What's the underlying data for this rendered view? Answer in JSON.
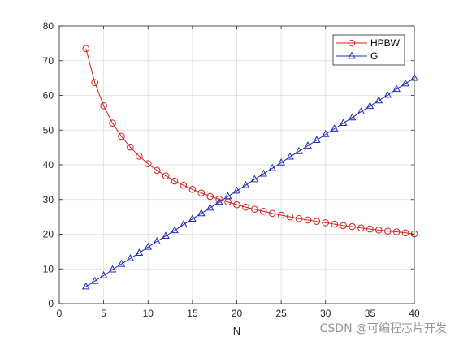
{
  "chart_data": {
    "type": "line",
    "xlabel": "N",
    "ylabel": "",
    "title": "",
    "xlim": [
      0,
      40
    ],
    "ylim": [
      0,
      80
    ],
    "xticks": [
      0,
      5,
      10,
      15,
      20,
      25,
      30,
      35,
      40
    ],
    "yticks": [
      0,
      10,
      20,
      30,
      40,
      50,
      60,
      70,
      80
    ],
    "grid": true,
    "legend_position": "top-right",
    "x": [
      3,
      4,
      5,
      6,
      7,
      8,
      9,
      10,
      11,
      12,
      13,
      14,
      15,
      16,
      17,
      18,
      19,
      20,
      21,
      22,
      23,
      24,
      25,
      26,
      27,
      28,
      29,
      30,
      31,
      32,
      33,
      34,
      35,
      36,
      37,
      38,
      39,
      40
    ],
    "series": [
      {
        "name": "HPBW",
        "color": "#d62020",
        "marker": "circle",
        "values": [
          73.5,
          63.7,
          57.0,
          52.0,
          48.2,
          45.1,
          42.5,
          40.3,
          38.4,
          36.8,
          35.3,
          34.1,
          32.9,
          31.9,
          30.9,
          30.1,
          29.3,
          28.5,
          27.8,
          27.2,
          26.6,
          26.0,
          25.5,
          25.0,
          24.5,
          24.1,
          23.7,
          23.3,
          22.9,
          22.5,
          22.2,
          21.8,
          21.5,
          21.2,
          20.9,
          20.7,
          20.4,
          20.1
        ]
      },
      {
        "name": "G",
        "color": "#1f2ab8",
        "marker": "triangle",
        "values": [
          4.9,
          6.5,
          8.1,
          9.8,
          11.4,
          13.0,
          14.6,
          16.3,
          17.9,
          19.5,
          21.1,
          22.8,
          24.4,
          26.0,
          27.6,
          29.3,
          30.9,
          32.5,
          34.1,
          35.8,
          37.4,
          39.0,
          40.6,
          42.3,
          43.9,
          45.5,
          47.1,
          48.8,
          50.4,
          52.0,
          53.6,
          55.3,
          56.9,
          58.5,
          60.1,
          61.8,
          63.4,
          65.0
        ]
      }
    ]
  },
  "watermark": "CSDN @可编程芯片开发",
  "colors": {
    "axis": "#262626",
    "grid": "#dedede",
    "background": "#ffffff"
  }
}
